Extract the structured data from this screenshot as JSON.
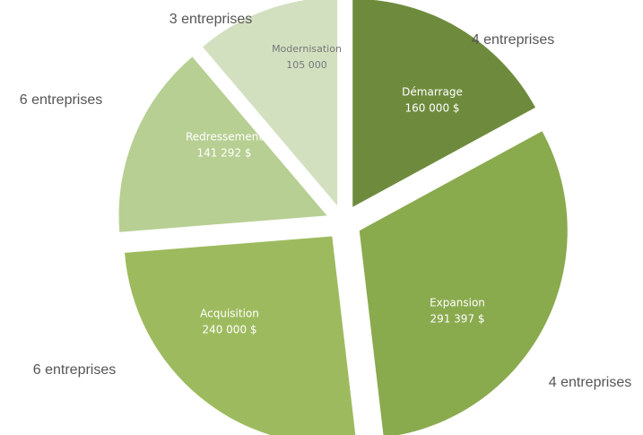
{
  "chart_data": {
    "type": "pie",
    "categories": [
      "Démarrage",
      "Expansion",
      "Acquisition",
      "Redressement",
      "Modernisation"
    ],
    "values": [
      160000,
      291397,
      240000,
      141292,
      105000
    ],
    "value_labels": [
      "160 000 $",
      "291 397 $",
      "240 000 $",
      "141 292  $",
      "105 000"
    ],
    "annotations": [
      "4 entreprises",
      "4 entreprises",
      "6 entreprises",
      "6 entreprises",
      "3 entreprises"
    ],
    "colors": [
      "#6e8b3d",
      "#8aaa4e",
      "#9dbb5e",
      "#b7cf92",
      "#d3e0c0"
    ]
  }
}
